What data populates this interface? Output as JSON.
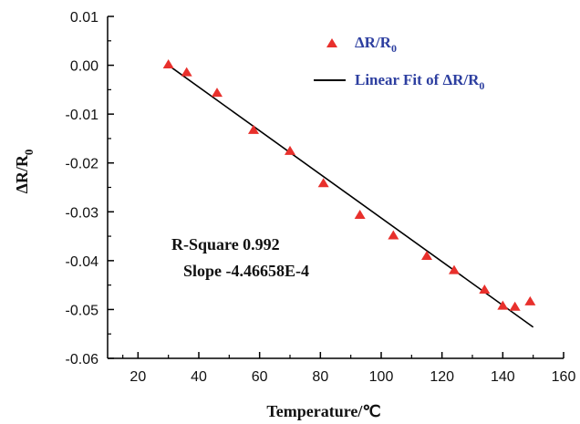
{
  "chart_data": {
    "type": "scatter",
    "xlabel": "Temperature/℃",
    "ylabel": "ΔR/R",
    "ylabel_sub": "0",
    "xlim": [
      10,
      160
    ],
    "ylim": [
      -0.06,
      0.01
    ],
    "xticks": [
      20,
      40,
      60,
      80,
      100,
      120,
      140,
      160
    ],
    "yticks": [
      0.01,
      0.0,
      -0.01,
      -0.02,
      -0.03,
      -0.04,
      -0.05,
      -0.06
    ],
    "ytick_labels": [
      "0.01",
      "0.00",
      "-0.01",
      "-0.02",
      "-0.03",
      "-0.04",
      "-0.05",
      "-0.06"
    ],
    "grid": false,
    "legend_position": "top-right",
    "series": [
      {
        "name": "ΔR/R",
        "name_sub": "0",
        "kind": "scatter",
        "marker": "triangle",
        "color": "#e8302c",
        "x": [
          30,
          36,
          46,
          58,
          70,
          81,
          93,
          104,
          115,
          124,
          134,
          140,
          144,
          149
        ],
        "y": [
          0.0001,
          -0.0015,
          -0.0057,
          -0.0133,
          -0.0176,
          -0.0242,
          -0.0307,
          -0.0349,
          -0.0391,
          -0.042,
          -0.046,
          -0.0493,
          -0.0495,
          -0.0484
        ]
      },
      {
        "name": "Linear Fit of  ΔR/R",
        "name_sub": "0",
        "kind": "line",
        "color": "#000000",
        "x": [
          30,
          150
        ],
        "y": [
          0.0,
          -0.0536
        ]
      }
    ],
    "annotations": [
      "R-Square 0.992",
      "Slope -4.46658E-4"
    ]
  }
}
